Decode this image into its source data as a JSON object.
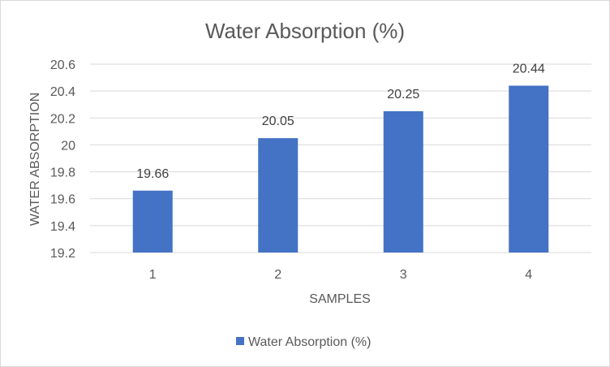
{
  "chart_data": {
    "type": "bar",
    "title": "Water Absorption (%)",
    "xlabel": "SAMPLES",
    "ylabel": "WATER ABSORPTION",
    "categories": [
      "1",
      "2",
      "3",
      "4"
    ],
    "series": [
      {
        "name": "Water Absorption (%)",
        "values": [
          19.66,
          20.05,
          20.25,
          20.44
        ]
      }
    ],
    "data_labels": [
      "19.66",
      "20.05",
      "20.25",
      "20.44"
    ],
    "ylim": [
      19.2,
      20.6
    ],
    "yticks": [
      19.2,
      19.4,
      19.6,
      19.8,
      20,
      20.2,
      20.4,
      20.6
    ],
    "ytick_labels": [
      "19.2",
      "19.4",
      "19.6",
      "19.8",
      "20",
      "20.2",
      "20.4",
      "20.6"
    ],
    "grid": true,
    "legend_position": "bottom",
    "bar_color": "#4472C4",
    "grid_color": "#d9d9d9"
  }
}
